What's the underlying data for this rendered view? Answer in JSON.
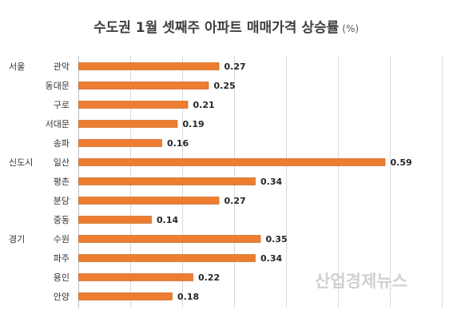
{
  "chart_data": {
    "type": "bar",
    "orientation": "horizontal",
    "title": "수도권 1월 셋째주 아파트 매매가격 상승률",
    "title_unit": "(%)",
    "xlabel": "",
    "ylabel": "",
    "xlim": [
      0,
      0.7
    ],
    "grid": "vertical",
    "bar_color": "#ED7D31",
    "groups": [
      {
        "label": "서울",
        "start": 0
      },
      {
        "label": "신도시",
        "start": 5
      },
      {
        "label": "경기",
        "start": 9
      }
    ],
    "categories": [
      "관악",
      "동대문",
      "구로",
      "서대문",
      "송파",
      "일산",
      "평촌",
      "분당",
      "중동",
      "수원",
      "파주",
      "용인",
      "안양"
    ],
    "values": [
      0.27,
      0.25,
      0.21,
      0.19,
      0.16,
      0.59,
      0.34,
      0.27,
      0.14,
      0.35,
      0.34,
      0.22,
      0.18
    ]
  },
  "watermark": "산업경제뉴스"
}
